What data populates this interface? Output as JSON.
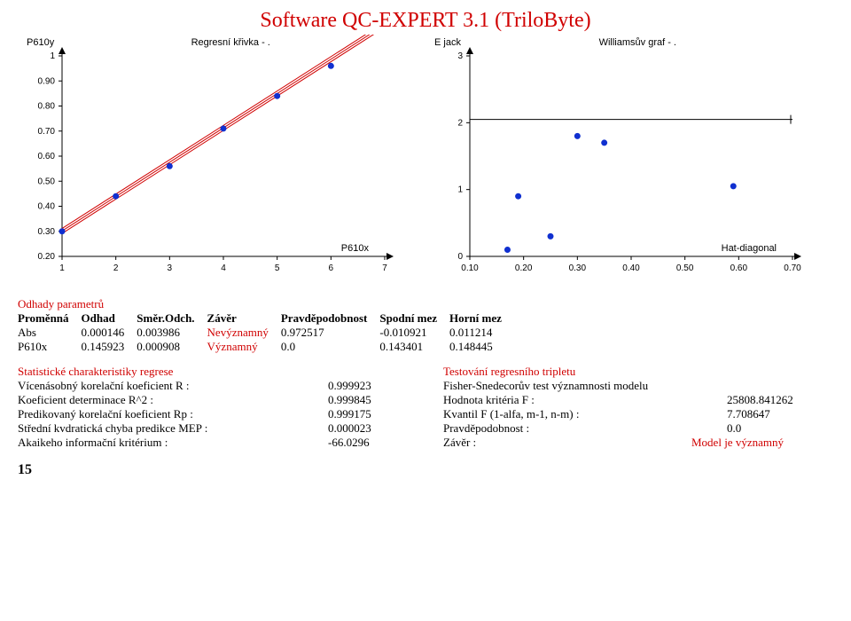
{
  "title": "Software QC-EXPERT 3.1 (TriloByte)",
  "slide_number": "15",
  "chart1": {
    "ylabel": "P610y",
    "xlabel": "P610x",
    "legend": "Regresní křivka - .",
    "xlim": [
      1,
      7
    ],
    "ylim": [
      0.2,
      1.0
    ],
    "xticks": [
      1,
      2,
      3,
      4,
      5,
      6,
      7
    ],
    "yticks": [
      0.2,
      0.3,
      0.4,
      0.5,
      0.6,
      0.7,
      0.8,
      0.9,
      1.0
    ],
    "points": [
      [
        1,
        0.3
      ],
      [
        2,
        0.44
      ],
      [
        3,
        0.56
      ],
      [
        4,
        0.71
      ],
      [
        5,
        0.84
      ],
      [
        6,
        0.96
      ]
    ],
    "line_band": {
      "a": 0.1643,
      "b": 0.1371,
      "offset": 0.01
    },
    "colors": {
      "point": "#1030d0",
      "line": "#d00000",
      "axis": "#000"
    }
  },
  "chart2": {
    "ylabel": "E jack",
    "xlabel": "Hat-diagonal",
    "legend": "Williamsův graf - .",
    "xlim": [
      0.1,
      0.7
    ],
    "ylim": [
      0,
      3
    ],
    "xticks": [
      0.1,
      0.2,
      0.3,
      0.4,
      0.5,
      0.6,
      0.7
    ],
    "yticks": [
      0,
      1,
      2,
      3
    ],
    "hline": 2.05,
    "points": [
      [
        0.17,
        0.1
      ],
      [
        0.19,
        0.9
      ],
      [
        0.25,
        0.3
      ],
      [
        0.3,
        1.8
      ],
      [
        0.35,
        1.7
      ],
      [
        0.59,
        1.05
      ]
    ],
    "colors": {
      "point": "#1030d0",
      "line": "#000",
      "axis": "#000"
    }
  },
  "odhady": {
    "title": "Odhady parametrů",
    "header": [
      "Proměnná",
      "Odhad",
      "Směr.Odch.",
      "Závěr",
      "Pravděpodobnost",
      "Spodní mez",
      "Horní mez"
    ],
    "rows": [
      [
        "Abs",
        "0.000146",
        "0.003986",
        "Nevýznamný",
        "0.972517",
        "-0.010921",
        "0.011214"
      ],
      [
        "P610x",
        "0.145923",
        "0.000908",
        "Významný",
        "0.0",
        "0.143401",
        "0.148445"
      ]
    ],
    "red_cols": [
      3
    ]
  },
  "stat_title": "Statistické charakteristiky regrese",
  "stats": [
    [
      "Vícenásobný korelační koeficient R :",
      "0.999923"
    ],
    [
      "Koeficient determinace R^2 :",
      "0.999845"
    ],
    [
      "Predikovaný korelační koeficient Rp :",
      "0.999175"
    ],
    [
      "Střední kvdratická chyba predikce MEP :",
      "0.000023"
    ],
    [
      "Akaikeho informační kritérium :",
      "-66.0296"
    ]
  ],
  "test_title": "Testování regresního tripletu",
  "tests": [
    [
      "Fisher-Snedecorův test významnosti modelu",
      ""
    ],
    [
      "Hodnota kritéria F :",
      "25808.841262"
    ],
    [
      "Kvantil F (1-alfa, m-1, n-m) :",
      "7.708647"
    ],
    [
      "Pravděpodobnost :",
      "0.0"
    ]
  ],
  "test_zaver": {
    "label": "Závěr :",
    "value": "Model je významný"
  }
}
